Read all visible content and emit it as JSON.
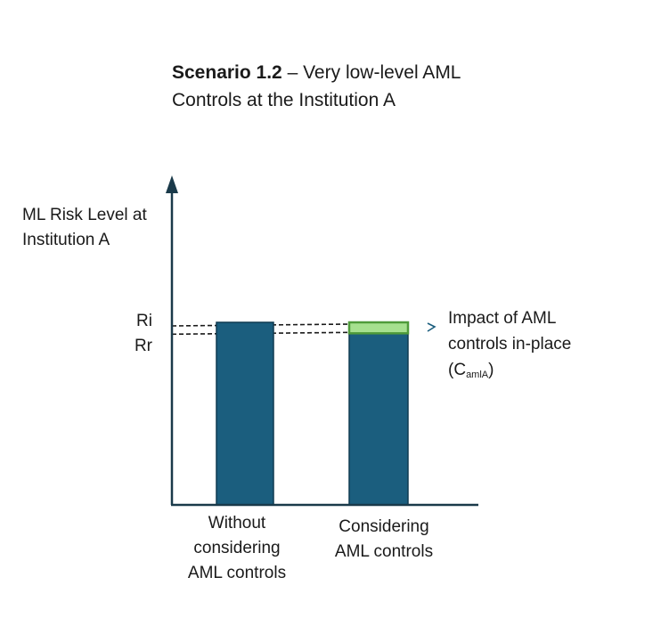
{
  "title": {
    "bold": "Scenario 1.2",
    "rest_line1": " – Very low-level AML",
    "rest_line2": "Controls at the Institution A"
  },
  "chart_data": {
    "type": "bar",
    "ylabel_line1": "ML Risk Level at",
    "ylabel_line2": "Institution A",
    "y_ticks": [
      {
        "label": "Ri",
        "value": 1.0
      },
      {
        "label": "Rr",
        "value": 0.94
      }
    ],
    "ylim": [
      0,
      1.4
    ],
    "categories": [
      {
        "line1": "Without",
        "line2": "considering",
        "line3": "AML controls"
      },
      {
        "line1": "Considering",
        "line2": "AML controls",
        "line3": ""
      }
    ],
    "bars": [
      {
        "name": "without-controls",
        "value": 1.0,
        "color": "#1b5e7e"
      },
      {
        "name": "with-controls",
        "value": 0.94,
        "color": "#1b5e7e",
        "impact_top": 1.0,
        "impact_color": "#a6e08f",
        "impact_border": "#4f9b3a"
      }
    ],
    "annotation": {
      "line1": "Impact of AML",
      "line2": "controls in-place",
      "line3_prefix": "(C",
      "line3_sub": "amlA",
      "line3_suffix": ")"
    },
    "colors": {
      "axis": "#1a3a4a",
      "dashed": "#1a1a1a",
      "bracket": "#1b5e7e"
    }
  }
}
